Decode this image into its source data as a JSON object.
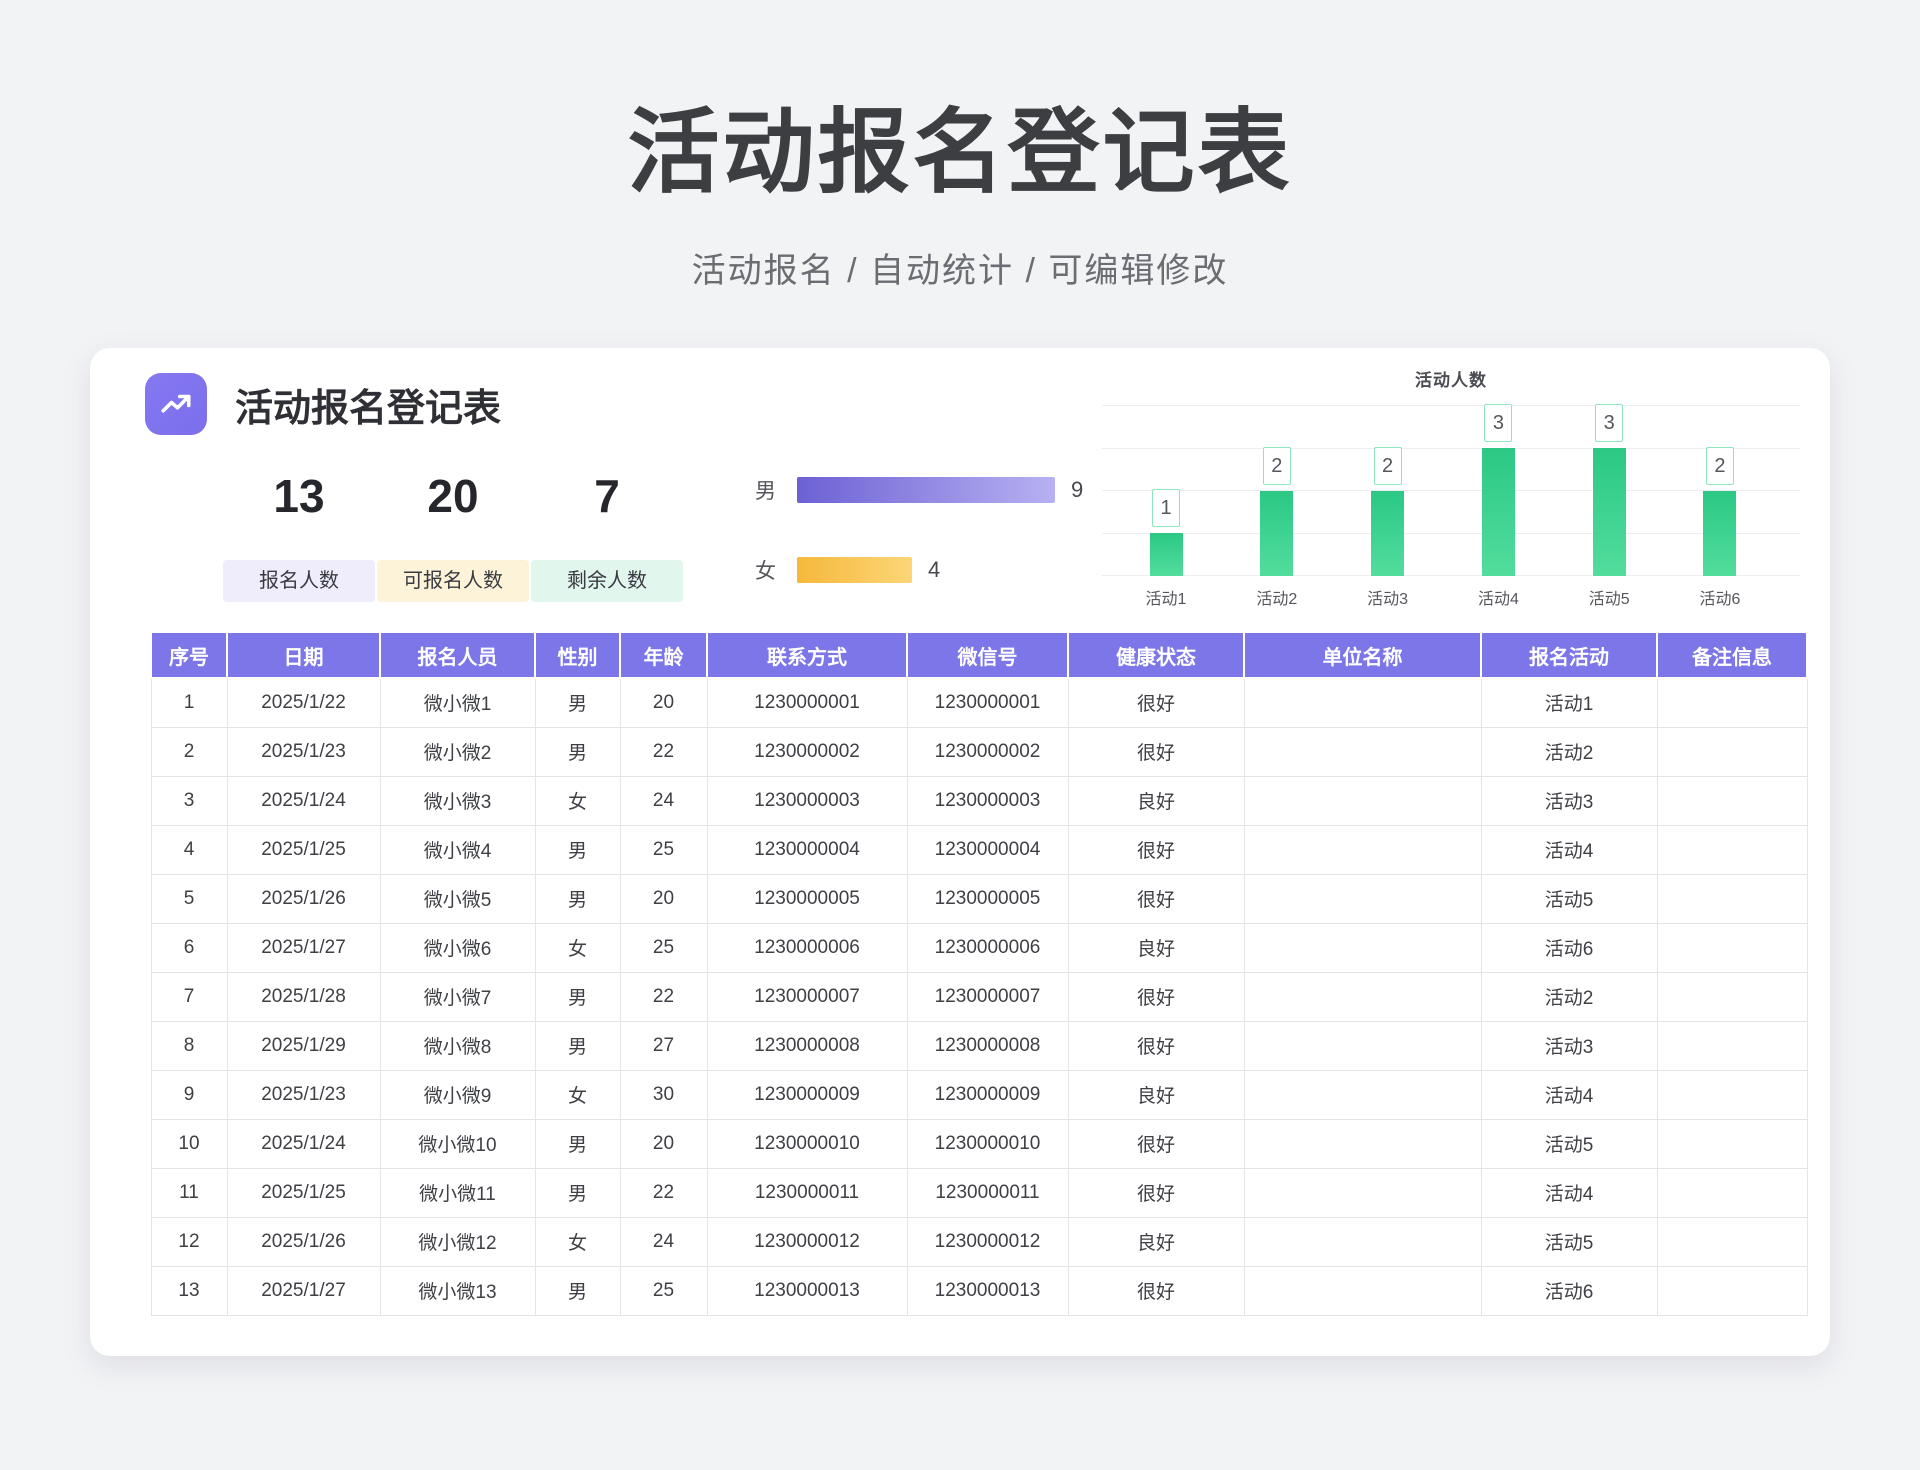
{
  "page": {
    "title": "活动报名登记表",
    "subtitle": "活动报名 / 自动统计 / 可编辑修改"
  },
  "card": {
    "title": "活动报名登记表",
    "icon": "trend-up-icon",
    "stats": [
      {
        "value": "13",
        "label": "报名人数",
        "bg": "#efedfc"
      },
      {
        "value": "20",
        "label": "可报名人数",
        "bg": "#fdf3d9"
      },
      {
        "value": "7",
        "label": "剩余人数",
        "bg": "#e1f6ed"
      }
    ]
  },
  "colors": {
    "header_purple": "#7c76e8",
    "icon_purple": "#8579f1",
    "chart_green_top": "#2bc884",
    "chart_green_bottom": "#52dd9d"
  },
  "chart_data": [
    {
      "type": "bar",
      "orientation": "horizontal",
      "title": "",
      "categories": [
        "男",
        "女"
      ],
      "values": [
        9,
        4
      ],
      "xlim": [
        0,
        9
      ],
      "bar_colors": [
        [
          "#6c61d4",
          "#b7b1f2"
        ],
        [
          "#f5b83c",
          "#fcd677"
        ]
      ],
      "value_labels": true
    },
    {
      "type": "bar",
      "title": "活动人数",
      "categories": [
        "活动1",
        "活动2",
        "活动3",
        "活动4",
        "活动5",
        "活动6"
      ],
      "values": [
        1,
        2,
        2,
        3,
        3,
        2
      ],
      "ylim": [
        0,
        4
      ],
      "grid": true,
      "legend": false,
      "value_labels": true
    }
  ],
  "table": {
    "headers": [
      "序号",
      "日期",
      "报名人员",
      "性别",
      "年龄",
      "联系方式",
      "微信号",
      "健康状态",
      "单位名称",
      "报名活动",
      "备注信息"
    ],
    "rows": [
      [
        "1",
        "2025/1/22",
        "微小微1",
        "男",
        "20",
        "1230000001",
        "1230000001",
        "很好",
        "",
        "活动1",
        ""
      ],
      [
        "2",
        "2025/1/23",
        "微小微2",
        "男",
        "22",
        "1230000002",
        "1230000002",
        "很好",
        "",
        "活动2",
        ""
      ],
      [
        "3",
        "2025/1/24",
        "微小微3",
        "女",
        "24",
        "1230000003",
        "1230000003",
        "良好",
        "",
        "活动3",
        ""
      ],
      [
        "4",
        "2025/1/25",
        "微小微4",
        "男",
        "25",
        "1230000004",
        "1230000004",
        "很好",
        "",
        "活动4",
        ""
      ],
      [
        "5",
        "2025/1/26",
        "微小微5",
        "男",
        "20",
        "1230000005",
        "1230000005",
        "很好",
        "",
        "活动5",
        ""
      ],
      [
        "6",
        "2025/1/27",
        "微小微6",
        "女",
        "25",
        "1230000006",
        "1230000006",
        "良好",
        "",
        "活动6",
        ""
      ],
      [
        "7",
        "2025/1/28",
        "微小微7",
        "男",
        "22",
        "1230000007",
        "1230000007",
        "很好",
        "",
        "活动2",
        ""
      ],
      [
        "8",
        "2025/1/29",
        "微小微8",
        "男",
        "27",
        "1230000008",
        "1230000008",
        "很好",
        "",
        "活动3",
        ""
      ],
      [
        "9",
        "2025/1/23",
        "微小微9",
        "女",
        "30",
        "1230000009",
        "1230000009",
        "良好",
        "",
        "活动4",
        ""
      ],
      [
        "10",
        "2025/1/24",
        "微小微10",
        "男",
        "20",
        "1230000010",
        "1230000010",
        "很好",
        "",
        "活动5",
        ""
      ],
      [
        "11",
        "2025/1/25",
        "微小微11",
        "男",
        "22",
        "1230000011",
        "1230000011",
        "很好",
        "",
        "活动4",
        ""
      ],
      [
        "12",
        "2025/1/26",
        "微小微12",
        "女",
        "24",
        "1230000012",
        "1230000012",
        "良好",
        "",
        "活动5",
        ""
      ],
      [
        "13",
        "2025/1/27",
        "微小微13",
        "男",
        "25",
        "1230000013",
        "1230000013",
        "很好",
        "",
        "活动6",
        ""
      ]
    ]
  }
}
